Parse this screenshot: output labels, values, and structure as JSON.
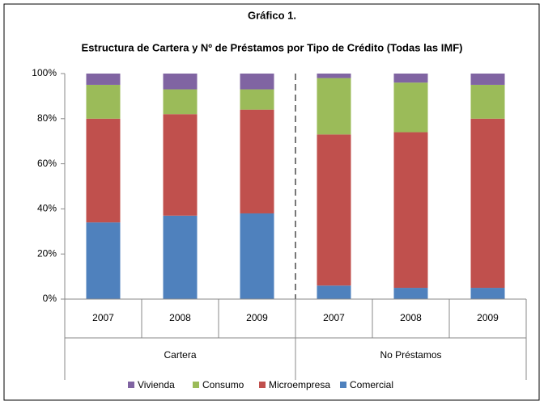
{
  "chart_data": {
    "type": "stacked_bar",
    "title": "Gráfico 1.",
    "subtitle": "Estructura de Cartera y Nº de Préstamos por Tipo de Crédito (Todas las IMF)",
    "categories": [
      "2007",
      "2008",
      "2009",
      "2007",
      "2008",
      "2009"
    ],
    "groups": [
      "Cartera",
      "No Préstamos"
    ],
    "series": [
      {
        "name": "Comercial",
        "color": "#4f81bd",
        "values": [
          34,
          37,
          38,
          6,
          5,
          5
        ]
      },
      {
        "name": "Microempresa",
        "color": "#c0504d",
        "values": [
          46,
          45,
          46,
          67,
          69,
          75
        ]
      },
      {
        "name": "Consumo",
        "color": "#9bbb59",
        "values": [
          15,
          11,
          9,
          25,
          22,
          15
        ]
      },
      {
        "name": "Vivienda",
        "color": "#8064a2",
        "values": [
          5,
          7,
          7,
          2,
          4,
          5
        ]
      }
    ],
    "ylim": [
      0,
      100
    ],
    "yticks": [
      {
        "value": 0,
        "label": "0%"
      },
      {
        "value": 20,
        "label": "20%"
      },
      {
        "value": 40,
        "label": "40%"
      },
      {
        "value": 60,
        "label": "60%"
      },
      {
        "value": 80,
        "label": "80%"
      },
      {
        "value": 100,
        "label": "100%"
      }
    ],
    "legend": "bottom"
  }
}
